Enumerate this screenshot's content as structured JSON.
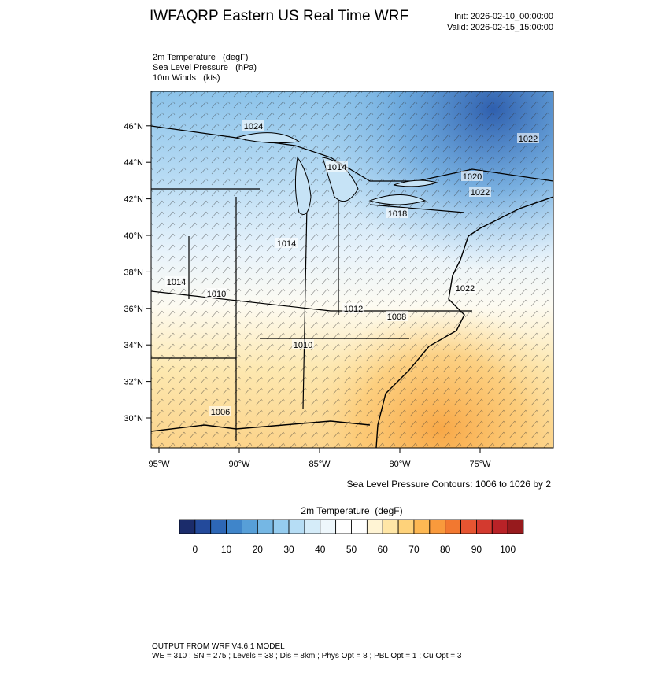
{
  "header": {
    "title": "IWFAQRP Eastern US Real Time WRF",
    "init": "Init: 2026-02-10_00:00:00",
    "valid": "Valid: 2026-02-15_15:00:00",
    "fields": [
      "2m Temperature   (degF)",
      "Sea Level Pressure   (hPa)",
      "10m Winds   (kts)"
    ]
  },
  "map": {
    "lat_labels": [
      "30°N",
      "32°N",
      "34°N",
      "36°N",
      "38°N",
      "40°N",
      "42°N",
      "44°N",
      "46°N"
    ],
    "lon_labels": [
      "95°W",
      "90°W",
      "85°W",
      "80°W",
      "75°W"
    ],
    "contour_labels": [
      "1024",
      "1014",
      "1018",
      "1014",
      "1014",
      "1010",
      "1012",
      "1008",
      "1010",
      "1006",
      "1022",
      "1022",
      "1020",
      "1022"
    ],
    "contour_note": "Sea Level Pressure Contours: 1006 to 1026 by 2"
  },
  "colorbar": {
    "title": "2m Temperature  (degF)",
    "tick_labels": [
      "0",
      "10",
      "20",
      "30",
      "40",
      "50",
      "60",
      "70",
      "80",
      "90",
      "100"
    ],
    "colors": [
      "#1b2c6b",
      "#234a9b",
      "#2d67b6",
      "#3f85ca",
      "#579fd8",
      "#75b7e4",
      "#95ccef",
      "#b6ddf5",
      "#d5ecf9",
      "#eef7fc",
      "#ffffff",
      "#ffffff",
      "#fff4d4",
      "#ffe6a6",
      "#fed27a",
      "#fdb853",
      "#f99a3c",
      "#f27830",
      "#e65531",
      "#d33a2f",
      "#b92227",
      "#971a1d"
    ]
  },
  "footer": {
    "line1": "OUTPUT FROM WRF V4.6.1 MODEL",
    "line2": "WE = 310 ; SN = 275 ; Levels = 38 ; Dis = 8km ; Phys Opt = 8 ; PBL Opt = 1 ; Cu Opt = 3"
  }
}
